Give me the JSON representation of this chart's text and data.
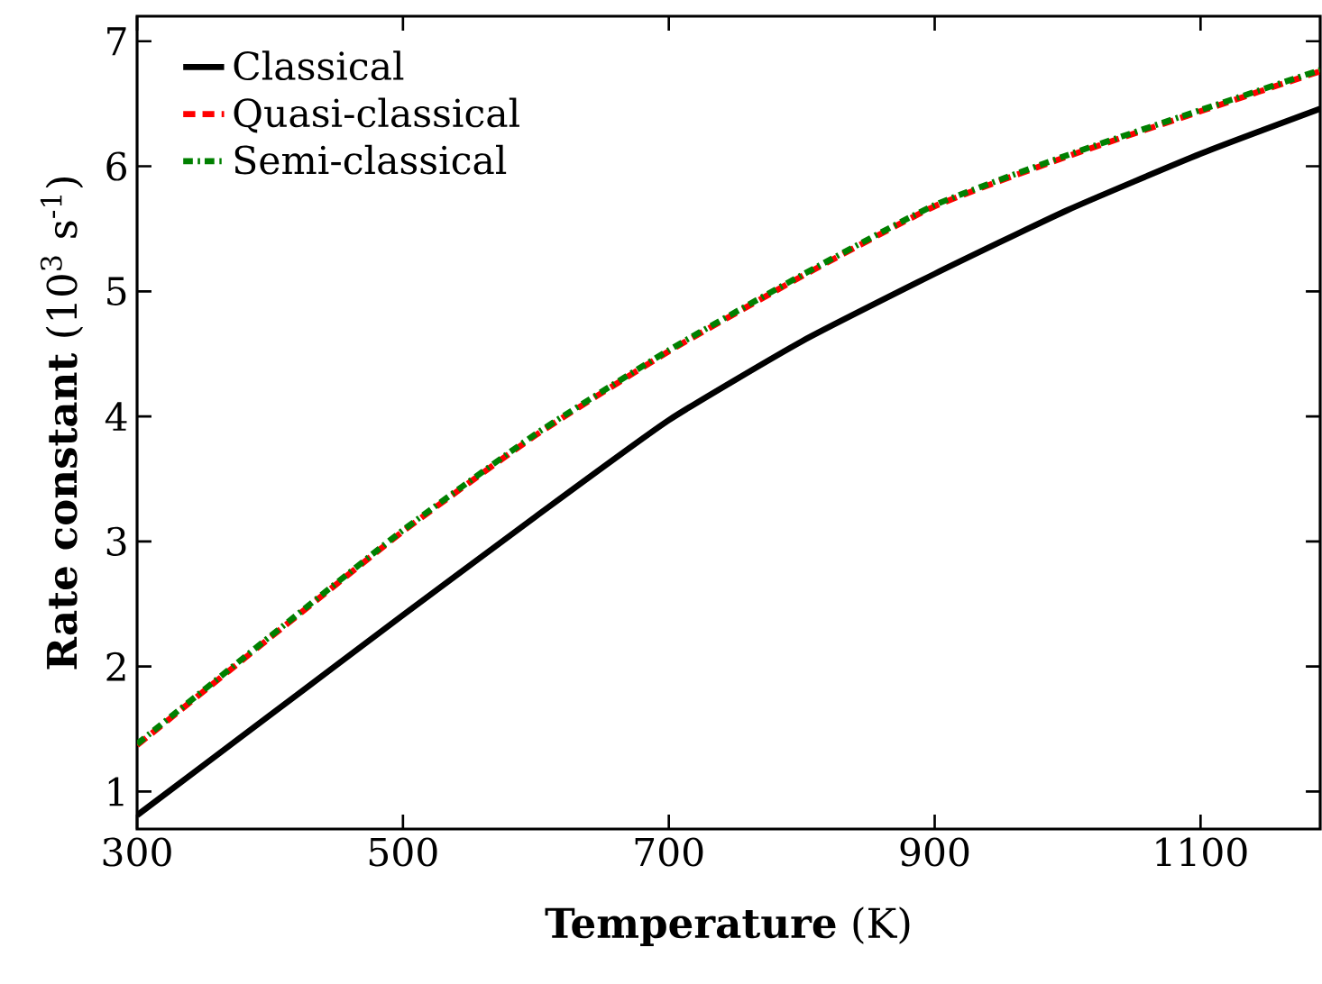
{
  "chart_data": {
    "type": "line",
    "xlabel": "**Temperature** (K)",
    "ylabel": "**Rate constant** (10$^{3}$ s$^{-1}$)",
    "x": [
      300,
      400,
      500,
      600,
      700,
      800,
      900,
      1000,
      1100,
      1190
    ],
    "series": [
      {
        "name": "Classical",
        "color": "#000000",
        "line_style": "solid",
        "values": [
          0.81,
          1.61,
          2.41,
          3.2,
          3.97,
          4.6,
          5.14,
          5.65,
          6.1,
          6.46
        ]
      },
      {
        "name": "Quasi-classical",
        "color": "#ff0000",
        "line_style": "dashed",
        "values": [
          1.37,
          2.23,
          3.08,
          3.85,
          4.52,
          5.12,
          5.68,
          6.08,
          6.44,
          6.76
        ]
      },
      {
        "name": "Semi-classical",
        "color": "#008000",
        "line_style": "dotted",
        "values": [
          1.38,
          2.24,
          3.09,
          3.86,
          4.53,
          5.13,
          5.69,
          6.09,
          6.45,
          6.77
        ]
      }
    ],
    "xlim": [
      300,
      1190
    ],
    "ylim": [
      0.7,
      7.2
    ],
    "xticks": [
      300,
      500,
      700,
      900,
      1100
    ],
    "yticks": [
      1,
      2,
      3,
      4,
      5,
      6,
      7
    ],
    "legend": "top left",
    "grid": false,
    "marker": "none"
  }
}
